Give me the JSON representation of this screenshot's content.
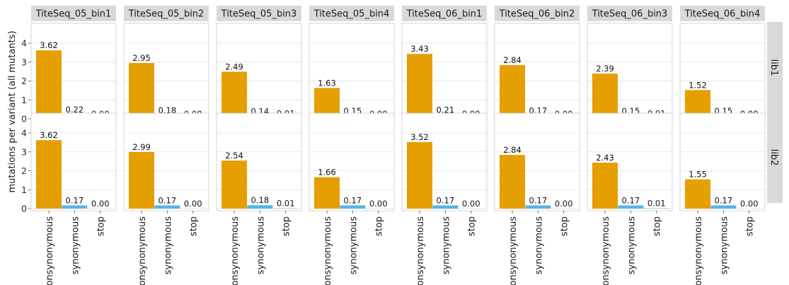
{
  "chart_data": {
    "type": "bar",
    "ylabel": "mutations per variant (all mutants)",
    "xlabel": "",
    "categories": [
      "nonsynonymous",
      "synonymous",
      "stop"
    ],
    "ylim": [
      0,
      4
    ],
    "yticks": [
      0,
      1,
      2,
      3,
      4
    ],
    "grid": true,
    "legend": "none",
    "colors": {
      "nonsynonymous": "#E69F00",
      "synonymous": "#56B4E9",
      "stop": "#009E73",
      "strip_bg": "#D9D9D9",
      "panel_border": "#CCCCCC",
      "grid": "#E0E0E0"
    },
    "facet_columns": [
      "TiteSeq_05_bin1",
      "TiteSeq_05_bin2",
      "TiteSeq_05_bin3",
      "TiteSeq_05_bin4",
      "TiteSeq_06_bin1",
      "TiteSeq_06_bin2",
      "TiteSeq_06_bin3",
      "TiteSeq_06_bin4"
    ],
    "facet_rows": [
      "lib1",
      "lib2"
    ],
    "panels": [
      {
        "row": "lib1",
        "col": "TiteSeq_05_bin1",
        "values": [
          3.62,
          0.22,
          0.0
        ],
        "labels": [
          "3.62",
          "0.22",
          "0.00"
        ]
      },
      {
        "row": "lib1",
        "col": "TiteSeq_05_bin2",
        "values": [
          2.95,
          0.18,
          0.0
        ],
        "labels": [
          "2.95",
          "0.18",
          "0.00"
        ]
      },
      {
        "row": "lib1",
        "col": "TiteSeq_05_bin3",
        "values": [
          2.49,
          0.14,
          0.01
        ],
        "labels": [
          "2.49",
          "0.14",
          "0.01"
        ]
      },
      {
        "row": "lib1",
        "col": "TiteSeq_05_bin4",
        "values": [
          1.63,
          0.15,
          0.0
        ],
        "labels": [
          "1.63",
          "0.15",
          "0.00"
        ]
      },
      {
        "row": "lib1",
        "col": "TiteSeq_06_bin1",
        "values": [
          3.43,
          0.21,
          0.0
        ],
        "labels": [
          "3.43",
          "0.21",
          "0.00"
        ]
      },
      {
        "row": "lib1",
        "col": "TiteSeq_06_bin2",
        "values": [
          2.84,
          0.17,
          0.0
        ],
        "labels": [
          "2.84",
          "0.17",
          "0.00"
        ]
      },
      {
        "row": "lib1",
        "col": "TiteSeq_06_bin3",
        "values": [
          2.39,
          0.15,
          0.01
        ],
        "labels": [
          "2.39",
          "0.15",
          "0.01"
        ]
      },
      {
        "row": "lib1",
        "col": "TiteSeq_06_bin4",
        "values": [
          1.52,
          0.15,
          0.0
        ],
        "labels": [
          "1.52",
          "0.15",
          "0.00"
        ]
      },
      {
        "row": "lib2",
        "col": "TiteSeq_05_bin1",
        "values": [
          3.62,
          0.17,
          0.0
        ],
        "labels": [
          "3.62",
          "0.17",
          "0.00"
        ]
      },
      {
        "row": "lib2",
        "col": "TiteSeq_05_bin2",
        "values": [
          2.99,
          0.17,
          0.0
        ],
        "labels": [
          "2.99",
          "0.17",
          "0.00"
        ]
      },
      {
        "row": "lib2",
        "col": "TiteSeq_05_bin3",
        "values": [
          2.54,
          0.18,
          0.01
        ],
        "labels": [
          "2.54",
          "0.18",
          "0.01"
        ]
      },
      {
        "row": "lib2",
        "col": "TiteSeq_05_bin4",
        "values": [
          1.66,
          0.17,
          0.0
        ],
        "labels": [
          "1.66",
          "0.17",
          "0.00"
        ]
      },
      {
        "row": "lib2",
        "col": "TiteSeq_06_bin1",
        "values": [
          3.52,
          0.17,
          0.0
        ],
        "labels": [
          "3.52",
          "0.17",
          "0.00"
        ]
      },
      {
        "row": "lib2",
        "col": "TiteSeq_06_bin2",
        "values": [
          2.84,
          0.17,
          0.0
        ],
        "labels": [
          "2.84",
          "0.17",
          "0.00"
        ]
      },
      {
        "row": "lib2",
        "col": "TiteSeq_06_bin3",
        "values": [
          2.43,
          0.17,
          0.01
        ],
        "labels": [
          "2.43",
          "0.17",
          "0.01"
        ]
      },
      {
        "row": "lib2",
        "col": "TiteSeq_06_bin4",
        "values": [
          1.55,
          0.17,
          0.0
        ],
        "labels": [
          "1.55",
          "0.17",
          "0.00"
        ]
      }
    ]
  }
}
